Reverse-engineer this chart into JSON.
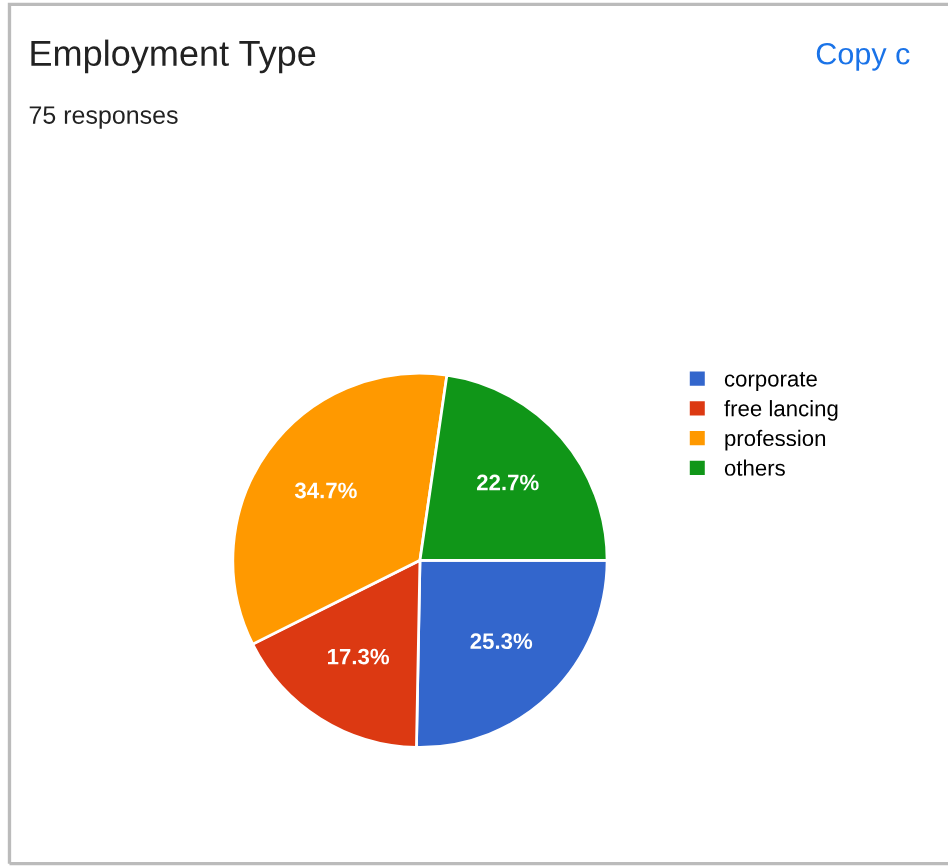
{
  "chart_data": {
    "type": "pie",
    "title": "Employment Type",
    "subtitle": "75 responses",
    "categories": [
      "corporate",
      "free lancing",
      "profession",
      "others"
    ],
    "values": [
      25.3,
      17.3,
      34.7,
      22.7
    ],
    "colors": [
      "#3366cc",
      "#dc3912",
      "#ff9900",
      "#109618"
    ],
    "value_labels": [
      "25.3%",
      "17.3%",
      "34.7%",
      "22.7%"
    ],
    "legend": "right",
    "annotations": [
      "Copy c"
    ]
  }
}
